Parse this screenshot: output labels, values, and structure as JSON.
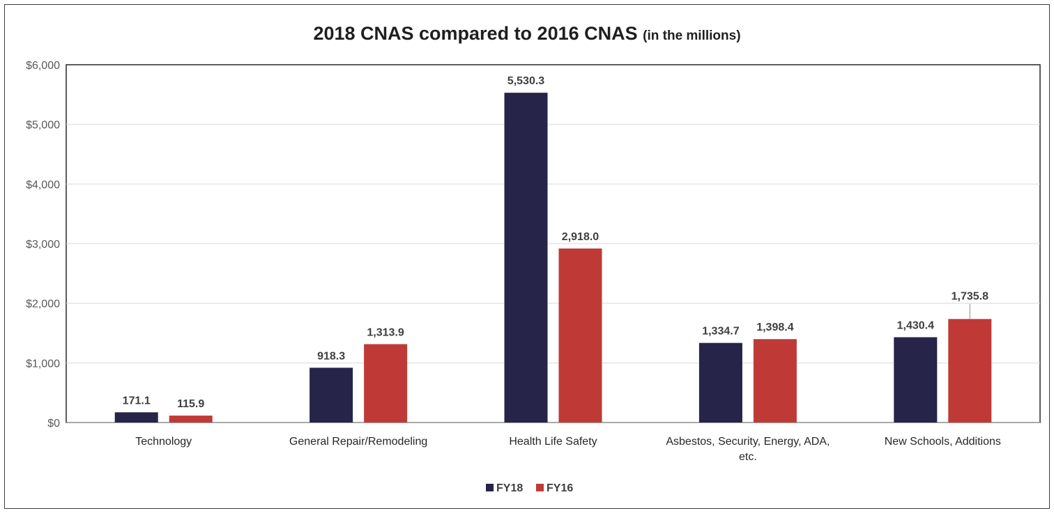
{
  "chart_data": {
    "type": "bar",
    "title": "2018 CNAS compared to 2016 CNAS",
    "subtitle": "(in the millions)",
    "categories": [
      [
        "Technology"
      ],
      [
        "General Repair/Remodeling"
      ],
      [
        "Health Life Safety"
      ],
      [
        "Asbestos, Security, Energy, ADA,",
        "etc."
      ],
      [
        "New Schools, Additions"
      ]
    ],
    "series": [
      {
        "name": "FY18",
        "color": "#262448",
        "values": [
          171.1,
          918.3,
          5530.3,
          1334.7,
          1430.4
        ],
        "labels": [
          "171.1",
          "918.3",
          "5,530.3",
          "1,334.7",
          "1,430.4"
        ]
      },
      {
        "name": "FY16",
        "color": "#BF3A37",
        "values": [
          115.9,
          1313.9,
          2918.0,
          1398.4,
          1735.8
        ],
        "labels": [
          "115.9",
          "1,313.9",
          "2,918.0",
          "1,398.4",
          "1,735.8"
        ]
      }
    ],
    "ylim": [
      0,
      6000
    ],
    "yticks": [
      {
        "value": 0,
        "label": "$0"
      },
      {
        "value": 1000,
        "label": "$1,000"
      },
      {
        "value": 2000,
        "label": "$2,000"
      },
      {
        "value": 3000,
        "label": "$3,000"
      },
      {
        "value": 4000,
        "label": "$4,000"
      },
      {
        "value": 5000,
        "label": "$5,000"
      },
      {
        "value": 6000,
        "label": "$6,000"
      }
    ],
    "grid": true,
    "legend": "bottom-center"
  }
}
